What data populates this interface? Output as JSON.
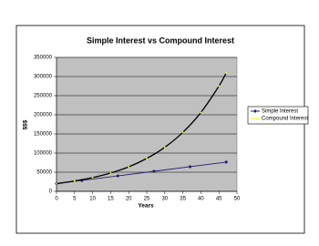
{
  "chart_data": {
    "type": "scatter",
    "title": "Simple Interest vs Compound Interest",
    "x_label": "Years",
    "y_label": "$$$",
    "xlim": [
      0,
      50
    ],
    "xticks": [
      0,
      5,
      10,
      15,
      20,
      25,
      30,
      35,
      40,
      45,
      50
    ],
    "ylim": [
      0,
      350000
    ],
    "yticks": [
      0,
      50000,
      100000,
      150000,
      200000,
      250000,
      300000,
      350000
    ],
    "grid": true,
    "legend": "right",
    "series": [
      {
        "name": "Simple Interest",
        "color": "#1f1f6e",
        "x": [
          0,
          7,
          17,
          27,
          37,
          47
        ],
        "values": [
          20000,
          28400,
          40400,
          52400,
          64400,
          76400
        ]
      },
      {
        "name": "Compound Interest",
        "color": "#000000",
        "x": [
          0,
          5,
          10,
          15,
          20,
          25,
          30,
          35,
          40,
          45,
          47
        ],
        "values": [
          20000,
          27000,
          36000,
          48000,
          64000,
          86000,
          115000,
          154000,
          206000,
          275000,
          309000
        ]
      }
    ]
  }
}
